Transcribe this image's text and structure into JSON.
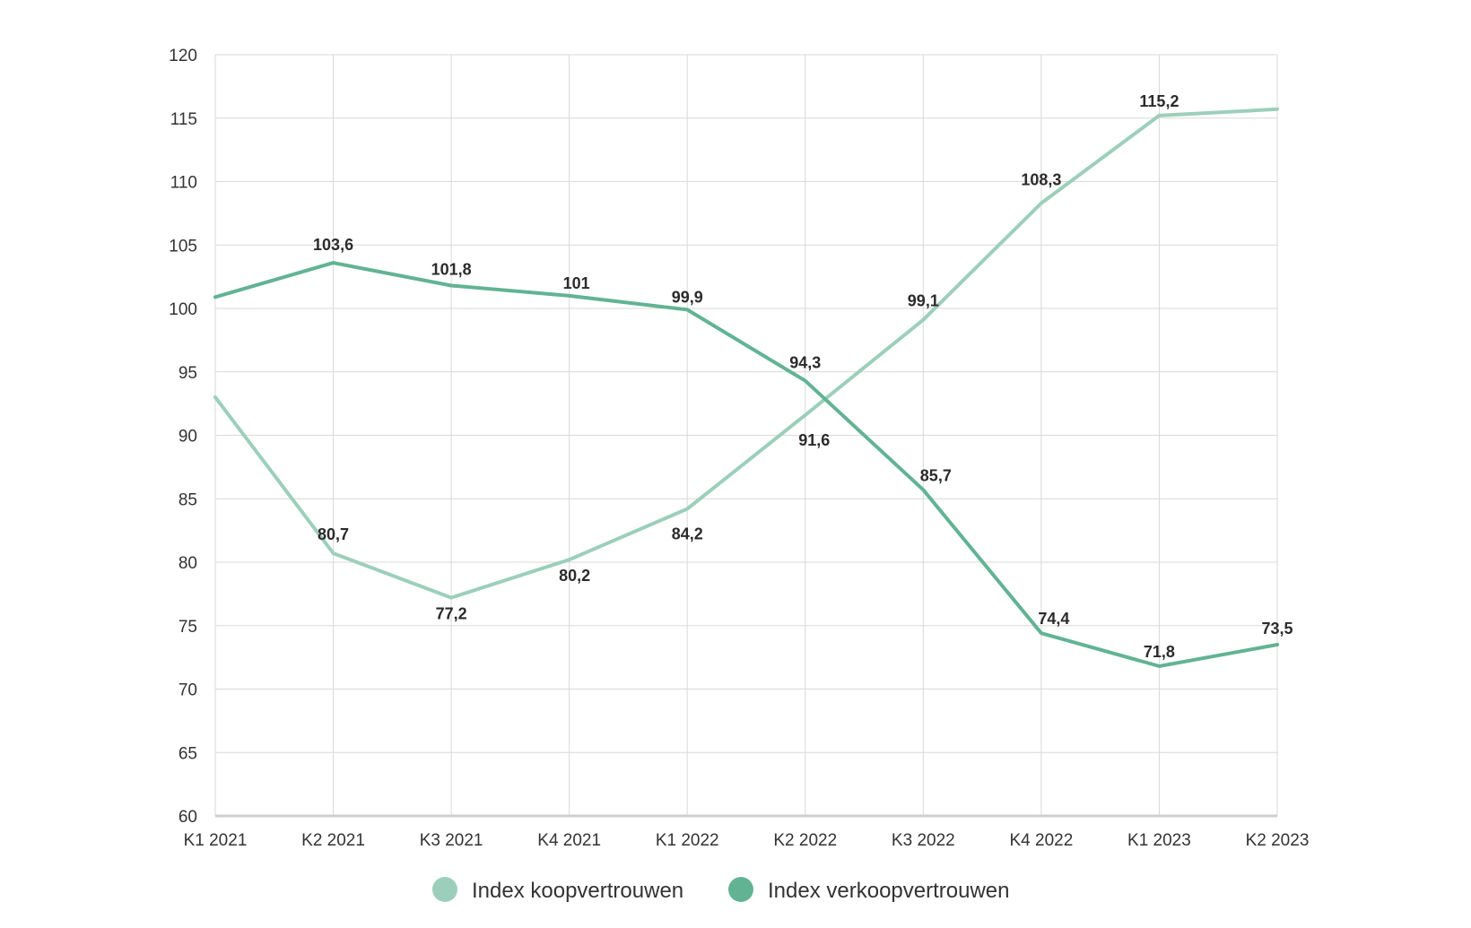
{
  "chart_data": {
    "type": "line",
    "categories": [
      "K1 2021",
      "K2 2021",
      "K3 2021",
      "K4 2021",
      "K1 2022",
      "K2 2022",
      "K3 2022",
      "K4 2022",
      "K1 2023",
      "K2 2023"
    ],
    "ylim": [
      60,
      120
    ],
    "yticks": [
      60,
      65,
      70,
      75,
      80,
      85,
      90,
      95,
      100,
      105,
      110,
      115,
      120
    ],
    "grid": true,
    "legend_position": "bottom",
    "series": [
      {
        "name": "Index koopvertrouwen",
        "color": "#9ccfbb",
        "values": [
          93.0,
          80.7,
          77.2,
          80.2,
          84.2,
          91.6,
          99.1,
          108.3,
          115.2,
          115.7
        ],
        "labels": [
          "",
          "80,7",
          "77,2",
          "80,2",
          "84,2",
          "91,6",
          "99,1",
          "108,3",
          "115,2",
          ""
        ]
      },
      {
        "name": "Index verkoopvertrouwen",
        "color": "#62b394",
        "values": [
          100.9,
          103.6,
          101.8,
          101.0,
          99.9,
          94.3,
          85.7,
          74.4,
          71.8,
          73.5
        ],
        "labels": [
          "",
          "103,6",
          "101,8",
          "101",
          "99,9",
          "94,3",
          "85,7",
          "74,4",
          "71,8",
          "73,5"
        ]
      }
    ]
  }
}
